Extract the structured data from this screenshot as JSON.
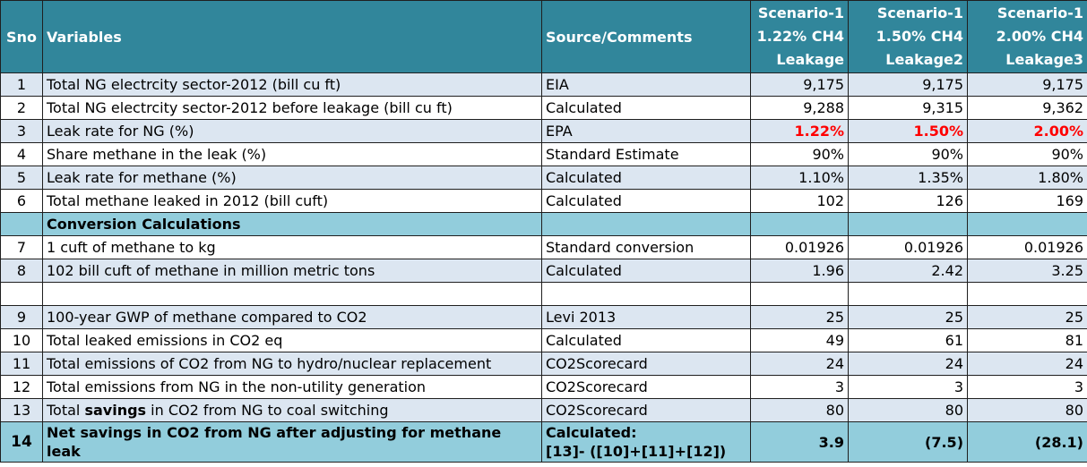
{
  "header": {
    "sno": "Sno",
    "variables": "Variables",
    "source": "Source/Comments",
    "scenarios": [
      [
        "Scenario-1",
        "1.22% CH4",
        "Leakage"
      ],
      [
        "Scenario-1",
        "1.50% CH4",
        "Leakage2"
      ],
      [
        "Scenario-1",
        "2.00% CH4",
        "Leakage3"
      ]
    ]
  },
  "rows": [
    {
      "sno": "1",
      "variable": "Total NG electrcity sector-2012 (bill cu ft)",
      "source": "EIA",
      "s1": "9,175",
      "s2": "9,175",
      "s3": "9,175"
    },
    {
      "sno": "2",
      "variable": "Total NG electrcity sector-2012 before leakage (bill cu ft)",
      "source": "Calculated",
      "s1": "9,288",
      "s2": "9,315",
      "s3": "9,362"
    },
    {
      "sno": "3",
      "variable": "Leak rate for NG (%)",
      "source": "EPA",
      "s1": "1.22%",
      "s2": "1.50%",
      "s3": "2.00%"
    },
    {
      "sno": "4",
      "variable": "Share methane in the leak (%)",
      "source": "Standard Estimate",
      "s1": "90%",
      "s2": "90%",
      "s3": "90%"
    },
    {
      "sno": "5",
      "variable": "Leak rate for methane (%)",
      "source": "Calculated",
      "s1": "1.10%",
      "s2": "1.35%",
      "s3": "1.80%"
    },
    {
      "sno": "6",
      "variable": "Total methane leaked in 2012 (bill cuft)",
      "source": "Calculated",
      "s1": "102",
      "s2": "126",
      "s3": "169"
    }
  ],
  "section_title": "Conversion Calculations",
  "rows2": [
    {
      "sno": "7",
      "variable": "1 cuft of methane to kg",
      "source": "Standard conversion",
      "s1": "0.01926",
      "s2": "0.01926",
      "s3": "0.01926"
    },
    {
      "sno": "8",
      "variable": "102 bill cuft of methane in million metric tons",
      "source": "Calculated",
      "s1": "1.96",
      "s2": "2.42",
      "s3": "3.25"
    }
  ],
  "rows3": [
    {
      "sno": "9",
      "variable": "100-year GWP of methane compared to CO2",
      "source": "Levi 2013",
      "s1": "25",
      "s2": "25",
      "s3": "25"
    },
    {
      "sno": "10",
      "variable": "Total leaked emissions in CO2 eq",
      "source": "Calculated",
      "s1": "49",
      "s2": "61",
      "s3": "81"
    },
    {
      "sno": "11",
      "variable": "Total emissions of CO2 from NG to hydro/nuclear replacement",
      "source": "CO2Scorecard",
      "s1": "24",
      "s2": "24",
      "s3": "24"
    },
    {
      "sno": "12",
      "variable": "Total emissions from NG in the non-utility generation",
      "source": "CO2Scorecard",
      "s1": "3",
      "s2": "3",
      "s3": "3"
    },
    {
      "sno": "13",
      "variable_pre": "Total ",
      "variable_bold": "savings",
      "variable_post": " in CO2 from NG to coal switching",
      "source": "CO2Scorecard",
      "s1": "80",
      "s2": "80",
      "s3": "80"
    }
  ],
  "final": {
    "sno": "14",
    "variable": "Net savings in CO2 from NG after adjusting for methane leak",
    "source_line1": "Calculated:",
    "source_line2": "[13]- ([10]+[11]+[12])",
    "s1": "3.9",
    "s2": "(7.5)",
    "s3": "(28.1)"
  },
  "colors": {
    "header_bg": "#31869b",
    "row_blue": "#dce6f1",
    "section_bg": "#92cddc",
    "highlight_red": "#ff0000"
  }
}
